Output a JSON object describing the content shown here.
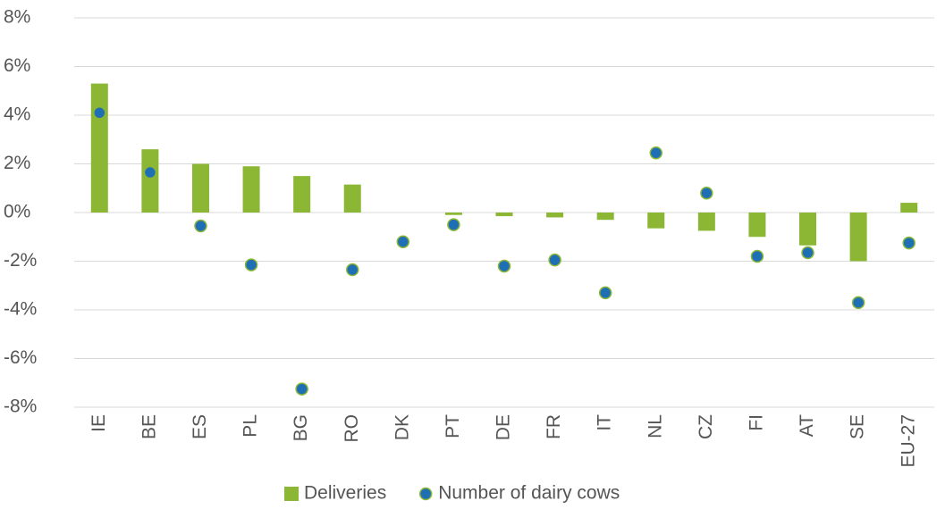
{
  "chart_data": {
    "type": "combo",
    "categories": [
      "IE",
      "BE",
      "ES",
      "PL",
      "BG",
      "RO",
      "DK",
      "PT",
      "DE",
      "FR",
      "IT",
      "NL",
      "CZ",
      "FI",
      "AT",
      "SE",
      "EU-27"
    ],
    "series": [
      {
        "name": "Deliveries",
        "type": "bar",
        "color": "#8cb735",
        "values": [
          5.3,
          2.6,
          2.0,
          1.9,
          1.5,
          1.15,
          0,
          -0.1,
          -0.15,
          -0.2,
          -0.3,
          -0.65,
          -0.75,
          -1.0,
          -1.35,
          -2.0,
          0.4
        ]
      },
      {
        "name": "Number of dairy cows",
        "type": "scatter",
        "color": "#1f6fb4",
        "values": [
          4.1,
          1.65,
          -0.55,
          -2.15,
          -7.25,
          -2.35,
          -1.2,
          -0.5,
          -2.2,
          -1.95,
          -3.3,
          2.45,
          0.8,
          -1.8,
          -1.65,
          -3.7,
          -1.25
        ]
      }
    ],
    "ylim": [
      -8,
      8
    ],
    "yticks": [
      {
        "value": -8,
        "label": "-8%"
      },
      {
        "value": -6,
        "label": "-6%"
      },
      {
        "value": -4,
        "label": "-4%"
      },
      {
        "value": -2,
        "label": "-2%"
      },
      {
        "value": 0,
        "label": "0%"
      },
      {
        "value": 2,
        "label": "2%"
      },
      {
        "value": 4,
        "label": "4%"
      },
      {
        "value": 6,
        "label": "6%"
      },
      {
        "value": 8,
        "label": "8%"
      }
    ],
    "grid": true,
    "legend": "bottom"
  }
}
